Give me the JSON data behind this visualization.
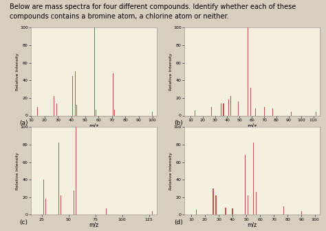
{
  "title_line1": "Below are mass spectra for four different compounds. Identify whether each of these",
  "title_line2": "compounds contains a bromine atom, a chlorine atom or neither.",
  "title_fontsize": 7.0,
  "bar_color": "#c8504a",
  "bg_color": "#f5f0e0",
  "outer_bg": "#d6cfc0",
  "spectra": [
    {
      "label": "(a)",
      "xlabel": "m/z",
      "ylabel": "Relative Intensity",
      "xlim": [
        10,
        103
      ],
      "ylim": [
        0,
        100
      ],
      "xticks": [
        10,
        20,
        30,
        40,
        50,
        60,
        70,
        80,
        90,
        100
      ],
      "yticks": [
        0,
        20,
        40,
        60,
        80,
        100
      ],
      "peaks": [
        {
          "mz": 15,
          "intensity": 10
        },
        {
          "mz": 27,
          "intensity": 22
        },
        {
          "mz": 29,
          "intensity": 14
        },
        {
          "mz": 41,
          "intensity": 45
        },
        {
          "mz": 43,
          "intensity": 50
        },
        {
          "mz": 44,
          "intensity": 12
        },
        {
          "mz": 57,
          "intensity": 100
        },
        {
          "mz": 58,
          "intensity": 7
        },
        {
          "mz": 71,
          "intensity": 48
        },
        {
          "mz": 72,
          "intensity": 7
        },
        {
          "mz": 100,
          "intensity": 4
        }
      ]
    },
    {
      "label": "(b)",
      "xlabel": "m/z",
      "ylabel": "Relative Intensity",
      "xlim": [
        5,
        115
      ],
      "ylim": [
        0,
        100
      ],
      "xticks": [
        10,
        20,
        30,
        40,
        50,
        60,
        70,
        80,
        90,
        100,
        110
      ],
      "yticks": [
        0,
        20,
        40,
        60,
        80,
        100
      ],
      "peaks": [
        {
          "mz": 14,
          "intensity": 6
        },
        {
          "mz": 27,
          "intensity": 10
        },
        {
          "mz": 35,
          "intensity": 14
        },
        {
          "mz": 37,
          "intensity": 14
        },
        {
          "mz": 41,
          "intensity": 18
        },
        {
          "mz": 43,
          "intensity": 22
        },
        {
          "mz": 49,
          "intensity": 16
        },
        {
          "mz": 57,
          "intensity": 100
        },
        {
          "mz": 59,
          "intensity": 32
        },
        {
          "mz": 63,
          "intensity": 8
        },
        {
          "mz": 70,
          "intensity": 10
        },
        {
          "mz": 77,
          "intensity": 8
        },
        {
          "mz": 92,
          "intensity": 4
        },
        {
          "mz": 112,
          "intensity": 4
        }
      ]
    },
    {
      "label": "(c)",
      "xlabel": "m/z",
      "ylabel": "Relative Intensity",
      "xlim": [
        15,
        132
      ],
      "ylim": [
        0,
        100
      ],
      "xticks": [
        25,
        50,
        75,
        100,
        125
      ],
      "yticks": [
        0,
        20,
        40,
        60,
        80,
        100
      ],
      "peaks": [
        {
          "mz": 27,
          "intensity": 40
        },
        {
          "mz": 29,
          "intensity": 18
        },
        {
          "mz": 41,
          "intensity": 82
        },
        {
          "mz": 43,
          "intensity": 22
        },
        {
          "mz": 55,
          "intensity": 28
        },
        {
          "mz": 57,
          "intensity": 100
        },
        {
          "mz": 85,
          "intensity": 7
        },
        {
          "mz": 128,
          "intensity": 4
        }
      ]
    },
    {
      "label": "(d)",
      "xlabel": "m/z",
      "ylabel": "Relative Intensity",
      "xlim": [
        5,
        103
      ],
      "ylim": [
        0,
        100
      ],
      "xticks": [
        10,
        20,
        30,
        40,
        50,
        60,
        70,
        80,
        90,
        100
      ],
      "yticks": [
        0,
        20,
        40,
        60,
        80,
        100
      ],
      "peaks": [
        {
          "mz": 14,
          "intensity": 6
        },
        {
          "mz": 26,
          "intensity": 30
        },
        {
          "mz": 28,
          "intensity": 22
        },
        {
          "mz": 35,
          "intensity": 8
        },
        {
          "mz": 40,
          "intensity": 7
        },
        {
          "mz": 49,
          "intensity": 68
        },
        {
          "mz": 51,
          "intensity": 22
        },
        {
          "mz": 55,
          "intensity": 82
        },
        {
          "mz": 57,
          "intensity": 26
        },
        {
          "mz": 77,
          "intensity": 10
        },
        {
          "mz": 90,
          "intensity": 4
        }
      ]
    }
  ]
}
